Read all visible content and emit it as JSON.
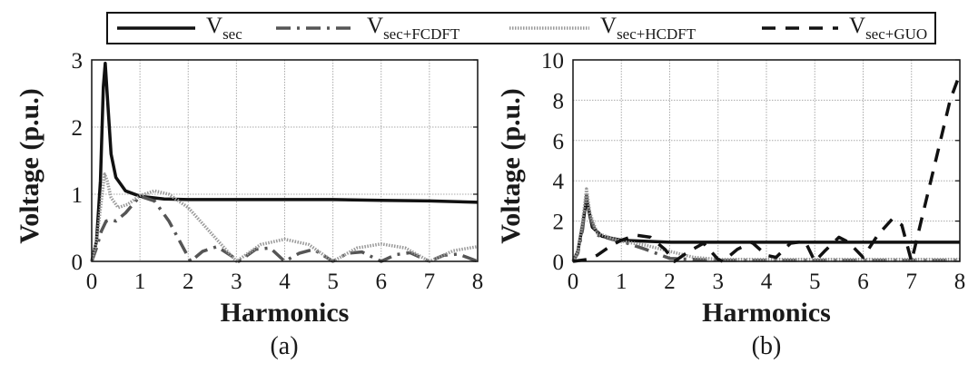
{
  "legend": {
    "items": [
      {
        "base": "V",
        "sub": "sec",
        "style": "solid",
        "color": "#111111"
      },
      {
        "base": "V",
        "sub": "sec+FCDFT",
        "style": "dashdot",
        "color": "#555555"
      },
      {
        "base": "V",
        "sub": "sec+HCDFT",
        "style": "dotted",
        "color": "#999999"
      },
      {
        "base": "V",
        "sub": "sec+GUO",
        "style": "dashed",
        "color": "#111111"
      }
    ]
  },
  "chart_data": [
    {
      "type": "line",
      "caption": "(a)",
      "xlabel": "Harmonics",
      "ylabel": "Voltage (p.u.)",
      "xlim": [
        0,
        8
      ],
      "ylim": [
        0,
        3
      ],
      "xticks": [
        "0",
        "1",
        "2",
        "3",
        "4",
        "5",
        "6",
        "7",
        "8"
      ],
      "yticks": [
        "0",
        "1",
        "2",
        "3"
      ],
      "grid": true,
      "series": [
        {
          "name": "V_sec",
          "x": [
            0,
            0.1,
            0.18,
            0.24,
            0.28,
            0.32,
            0.4,
            0.5,
            0.7,
            1,
            1.5,
            2,
            3,
            4,
            5,
            6,
            7,
            8
          ],
          "y": [
            0,
            0.3,
            1.2,
            2.6,
            2.95,
            2.5,
            1.6,
            1.25,
            1.05,
            0.97,
            0.93,
            0.92,
            0.92,
            0.92,
            0.92,
            0.91,
            0.9,
            0.88
          ]
        },
        {
          "name": "V_sec+FCDFT",
          "x": [
            0,
            0.1,
            0.2,
            0.3,
            0.4,
            0.5,
            0.7,
            1,
            1.3,
            1.6,
            1.9,
            2.05,
            2.3,
            2.6,
            2.9,
            3.05,
            3.4,
            3.7,
            4,
            4.3,
            4.6,
            5,
            5.3,
            5.6,
            6,
            6.3,
            6.6,
            7,
            7.3,
            7.6,
            8
          ],
          "y": [
            0,
            0.2,
            0.45,
            0.6,
            0.62,
            0.6,
            0.72,
            0.97,
            0.9,
            0.6,
            0.2,
            0,
            0.15,
            0.22,
            0.08,
            0,
            0.18,
            0.2,
            0,
            0.12,
            0.18,
            0,
            0.12,
            0.14,
            0,
            0.1,
            0.13,
            0,
            0.09,
            0.11,
            0
          ]
        },
        {
          "name": "V_sec+HCDFT",
          "x": [
            0,
            0.1,
            0.2,
            0.27,
            0.32,
            0.4,
            0.55,
            0.75,
            1,
            1.3,
            1.6,
            2,
            2.5,
            3,
            3.5,
            4,
            4.5,
            5,
            5.5,
            6,
            6.5,
            7,
            7.5,
            8
          ],
          "y": [
            0,
            0.3,
            0.9,
            1.3,
            1.2,
            0.95,
            0.8,
            0.85,
            0.98,
            1.05,
            1.0,
            0.8,
            0.4,
            0,
            0.25,
            0.33,
            0.25,
            0,
            0.2,
            0.26,
            0.2,
            0,
            0.16,
            0.22
          ]
        }
      ]
    },
    {
      "type": "line",
      "caption": "(b)",
      "xlabel": "Harmonics",
      "ylabel": "Voltage (p.u.)",
      "xlim": [
        0,
        8
      ],
      "ylim": [
        0,
        10
      ],
      "xticks": [
        "0",
        "1",
        "2",
        "3",
        "4",
        "5",
        "6",
        "7",
        "8"
      ],
      "yticks": [
        "0",
        "2",
        "4",
        "6",
        "8",
        "10"
      ],
      "grid": true,
      "series": [
        {
          "name": "V_sec",
          "x": [
            0,
            0.1,
            0.2,
            0.28,
            0.33,
            0.4,
            0.6,
            1,
            2,
            4,
            6,
            8
          ],
          "y": [
            0,
            0.5,
            1.8,
            3.1,
            2.5,
            1.7,
            1.25,
            1.05,
            0.95,
            0.95,
            0.95,
            0.95
          ]
        },
        {
          "name": "V_sec+FCDFT",
          "x": [
            0,
            0.1,
            0.2,
            0.28,
            0.35,
            0.5,
            0.8,
            1,
            1.5,
            2,
            2.5,
            3,
            4,
            5,
            6,
            7,
            8
          ],
          "y": [
            0,
            0.4,
            1.6,
            3.3,
            2.2,
            1.3,
            1.1,
            1.0,
            0.6,
            0.15,
            0.1,
            0.05,
            0.05,
            0.05,
            0.05,
            0.05,
            0.05
          ]
        },
        {
          "name": "V_sec+HCDFT",
          "x": [
            0,
            0.1,
            0.2,
            0.28,
            0.35,
            0.5,
            0.8,
            1,
            1.5,
            2,
            2.5,
            3,
            4,
            5,
            6,
            7,
            8
          ],
          "y": [
            0,
            0.5,
            2.0,
            3.6,
            2.4,
            1.4,
            1.15,
            1.0,
            0.8,
            0.5,
            0.2,
            0.1,
            0.1,
            0.1,
            0.1,
            0.1,
            0.1
          ]
        },
        {
          "name": "V_sec+GUO",
          "x": [
            0,
            0.3,
            0.5,
            0.8,
            1,
            1.3,
            1.6,
            1.9,
            2.1,
            2.4,
            2.7,
            3,
            3.1,
            3.4,
            3.7,
            4,
            4.2,
            4.5,
            4.8,
            5,
            5.2,
            5.5,
            5.7,
            6,
            6.3,
            6.6,
            6.8,
            7,
            7.2,
            7.5,
            7.8,
            8
          ],
          "y": [
            0,
            0.1,
            0.3,
            0.8,
            1.05,
            1.3,
            1.2,
            0.6,
            0,
            0.5,
            0.9,
            0.1,
            0,
            0.6,
            0.95,
            0.3,
            0.2,
            0.9,
            1.0,
            0,
            0.5,
            1.2,
            0.95,
            0.2,
            1.3,
            2.1,
            1.8,
            0,
            2.0,
            5.0,
            8.0,
            9.3
          ]
        }
      ]
    }
  ]
}
